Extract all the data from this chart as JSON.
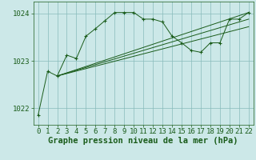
{
  "bg_color": "#cce8e8",
  "grid_color": "#88bbbb",
  "line_color": "#1a5c1a",
  "marker_color": "#1a5c1a",
  "xlabel": "Graphe pression niveau de la mer (hPa)",
  "xlabel_fontsize": 7.5,
  "tick_fontsize": 6.5,
  "ytick_labels": [
    1022,
    1023,
    1024
  ],
  "ylim": [
    1021.65,
    1024.25
  ],
  "xlim": [
    -0.5,
    22.5
  ],
  "xticks": [
    0,
    1,
    2,
    3,
    4,
    5,
    6,
    7,
    8,
    9,
    10,
    11,
    12,
    13,
    14,
    15,
    16,
    17,
    18,
    19,
    20,
    21,
    22
  ],
  "series": [
    {
      "x": [
        0,
        1,
        2,
        3,
        4,
        5,
        6,
        7,
        8,
        9,
        10,
        11,
        12,
        13,
        14,
        15,
        16,
        17,
        18,
        19,
        20,
        21,
        22
      ],
      "y": [
        1021.85,
        1022.78,
        1022.68,
        1023.12,
        1023.05,
        1023.52,
        1023.68,
        1023.85,
        1024.02,
        1024.02,
        1024.02,
        1023.88,
        1023.88,
        1023.82,
        1023.52,
        1023.38,
        1023.22,
        1023.18,
        1023.38,
        1023.38,
        1023.88,
        1023.88,
        1024.02
      ],
      "has_markers": true
    },
    {
      "x": [
        2,
        22
      ],
      "y": [
        1022.68,
        1024.02
      ],
      "has_markers": false
    },
    {
      "x": [
        2,
        22
      ],
      "y": [
        1022.68,
        1023.88
      ],
      "has_markers": false
    },
    {
      "x": [
        2,
        22
      ],
      "y": [
        1022.68,
        1023.72
      ],
      "has_markers": false
    }
  ]
}
